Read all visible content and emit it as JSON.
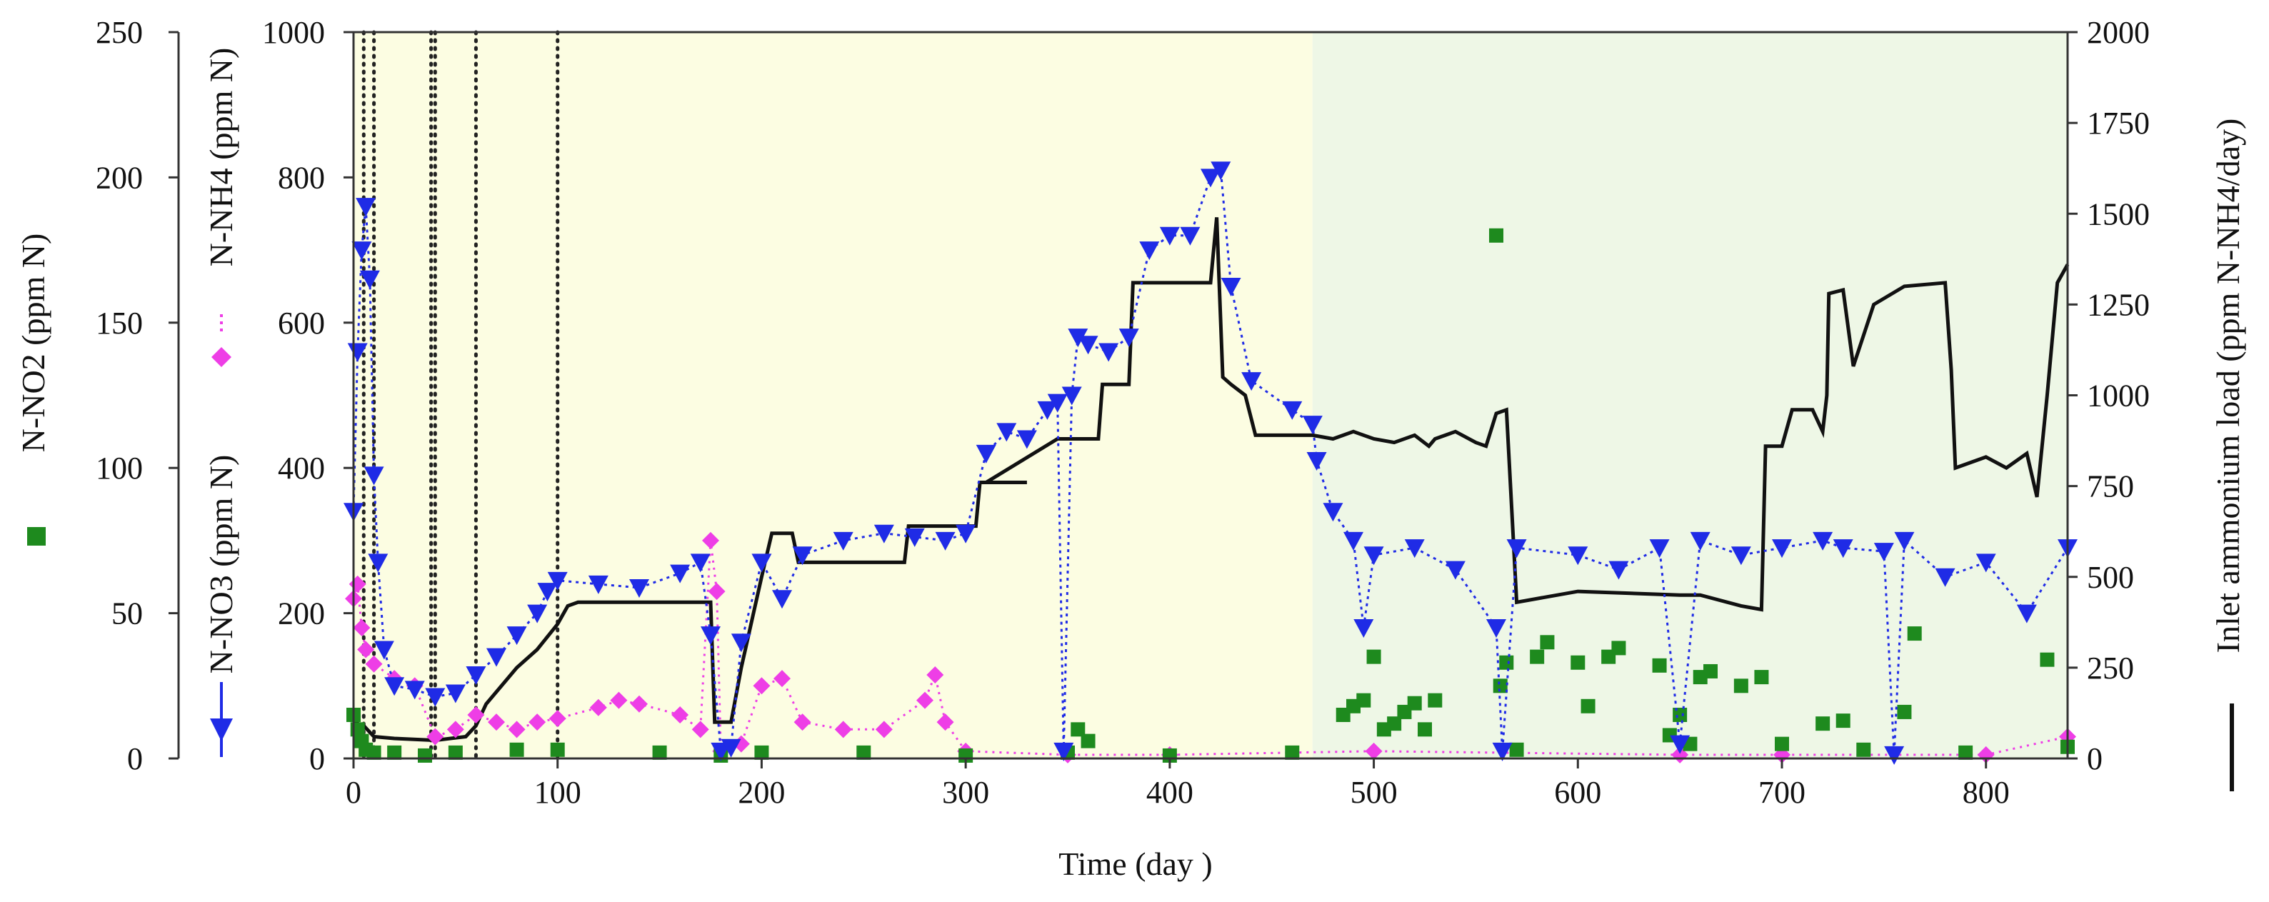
{
  "chart_data": {
    "type": "scatter",
    "xlabel": "Time (day )",
    "x_ticks": [
      0,
      100,
      200,
      300,
      400,
      500,
      600,
      700,
      800
    ],
    "xlim": [
      0,
      840
    ],
    "axes": {
      "no2": {
        "label": "N-NO2 (ppm N)",
        "lim": [
          0,
          250
        ],
        "ticks": [
          0,
          50,
          100,
          150,
          200,
          250
        ]
      },
      "nh4": {
        "label": "N-NH4 (ppm N)",
        "lim": [
          0,
          1000
        ],
        "ticks": [
          0,
          200,
          400,
          600,
          800,
          1000
        ]
      },
      "no3": {
        "label": "N-NO3 (ppm N)",
        "lim": [
          0,
          1000
        ]
      },
      "load": {
        "label": "Inlet ammonium load (ppm N-NH4/day)",
        "lim": [
          0,
          2000
        ],
        "ticks": [
          0,
          250,
          500,
          750,
          1000,
          1250,
          1500,
          1750,
          2000
        ]
      }
    },
    "phases": [
      {
        "x": [
          0,
          470
        ],
        "color": "#fcfde2"
      },
      {
        "x": [
          470,
          840
        ],
        "color": "#eef7e6"
      }
    ],
    "vlines": [
      5,
      10,
      38,
      40,
      60,
      100
    ],
    "colors": {
      "no2": "#1e8a1e",
      "nh4": "#1f2be6",
      "no3": "#ee3ee6",
      "load": "#111111"
    },
    "series": [
      {
        "name": "N-NO2 (ppm N)",
        "key": "no2",
        "marker": "square",
        "points": [
          [
            0,
            15
          ],
          [
            2,
            10
          ],
          [
            4,
            6
          ],
          [
            6,
            3
          ],
          [
            10,
            2
          ],
          [
            20,
            2
          ],
          [
            35,
            1
          ],
          [
            50,
            2
          ],
          [
            80,
            3
          ],
          [
            100,
            3
          ],
          [
            150,
            2
          ],
          [
            180,
            1
          ],
          [
            200,
            2
          ],
          [
            250,
            2
          ],
          [
            300,
            1
          ],
          [
            350,
            2
          ],
          [
            355,
            10
          ],
          [
            360,
            6
          ],
          [
            400,
            1
          ],
          [
            460,
            2
          ],
          [
            485,
            15
          ],
          [
            490,
            18
          ],
          [
            495,
            20
          ],
          [
            500,
            35
          ],
          [
            505,
            10
          ],
          [
            510,
            12
          ],
          [
            515,
            16
          ],
          [
            520,
            19
          ],
          [
            525,
            10
          ],
          [
            530,
            20
          ],
          [
            560,
            180
          ],
          [
            562,
            25
          ],
          [
            565,
            33
          ],
          [
            570,
            3
          ],
          [
            580,
            35
          ],
          [
            585,
            40
          ],
          [
            600,
            33
          ],
          [
            605,
            18
          ],
          [
            615,
            35
          ],
          [
            620,
            38
          ],
          [
            640,
            32
          ],
          [
            645,
            8
          ],
          [
            650,
            15
          ],
          [
            655,
            5
          ],
          [
            660,
            28
          ],
          [
            665,
            30
          ],
          [
            680,
            25
          ],
          [
            690,
            28
          ],
          [
            700,
            5
          ],
          [
            720,
            12
          ],
          [
            730,
            13
          ],
          [
            740,
            3
          ],
          [
            760,
            16
          ],
          [
            765,
            43
          ],
          [
            790,
            2
          ],
          [
            830,
            34
          ],
          [
            840,
            4
          ]
        ]
      },
      {
        "name": "N-NH4 (ppm N)",
        "key": "nh4",
        "marker": "triangle-down",
        "points": [
          [
            0,
            340
          ],
          [
            2,
            560
          ],
          [
            4,
            700
          ],
          [
            6,
            760
          ],
          [
            8,
            660
          ],
          [
            10,
            390
          ],
          [
            12,
            270
          ],
          [
            15,
            150
          ],
          [
            20,
            100
          ],
          [
            30,
            95
          ],
          [
            40,
            85
          ],
          [
            50,
            90
          ],
          [
            60,
            115
          ],
          [
            70,
            140
          ],
          [
            80,
            170
          ],
          [
            90,
            200
          ],
          [
            95,
            230
          ],
          [
            100,
            245
          ],
          [
            120,
            240
          ],
          [
            140,
            235
          ],
          [
            160,
            255
          ],
          [
            170,
            270
          ],
          [
            175,
            170
          ],
          [
            180,
            10
          ],
          [
            185,
            15
          ],
          [
            190,
            160
          ],
          [
            200,
            270
          ],
          [
            210,
            220
          ],
          [
            220,
            280
          ],
          [
            240,
            300
          ],
          [
            260,
            310
          ],
          [
            275,
            305
          ],
          [
            290,
            300
          ],
          [
            300,
            310
          ],
          [
            310,
            420
          ],
          [
            320,
            450
          ],
          [
            330,
            440
          ],
          [
            340,
            480
          ],
          [
            345,
            490
          ],
          [
            348,
            10
          ],
          [
            352,
            500
          ],
          [
            355,
            580
          ],
          [
            360,
            570
          ],
          [
            370,
            560
          ],
          [
            380,
            580
          ],
          [
            390,
            700
          ],
          [
            400,
            720
          ],
          [
            410,
            720
          ],
          [
            420,
            800
          ],
          [
            425,
            810
          ],
          [
            430,
            650
          ],
          [
            440,
            520
          ],
          [
            460,
            480
          ],
          [
            470,
            460
          ],
          [
            472,
            410
          ],
          [
            480,
            340
          ],
          [
            490,
            300
          ],
          [
            495,
            180
          ],
          [
            500,
            280
          ],
          [
            520,
            290
          ],
          [
            540,
            260
          ],
          [
            560,
            180
          ],
          [
            563,
            10
          ],
          [
            570,
            290
          ],
          [
            600,
            280
          ],
          [
            620,
            260
          ],
          [
            640,
            290
          ],
          [
            650,
            20
          ],
          [
            660,
            300
          ],
          [
            680,
            280
          ],
          [
            700,
            290
          ],
          [
            720,
            300
          ],
          [
            730,
            290
          ],
          [
            750,
            285
          ],
          [
            755,
            5
          ],
          [
            760,
            300
          ],
          [
            780,
            250
          ],
          [
            800,
            270
          ],
          [
            820,
            200
          ],
          [
            840,
            290
          ]
        ]
      },
      {
        "name": "N-NO3 (ppm N)",
        "key": "no3",
        "marker": "diamond",
        "points": [
          [
            0,
            220
          ],
          [
            2,
            240
          ],
          [
            4,
            180
          ],
          [
            6,
            150
          ],
          [
            10,
            130
          ],
          [
            20,
            110
          ],
          [
            30,
            100
          ],
          [
            40,
            30
          ],
          [
            50,
            40
          ],
          [
            60,
            60
          ],
          [
            70,
            50
          ],
          [
            80,
            40
          ],
          [
            90,
            50
          ],
          [
            100,
            55
          ],
          [
            120,
            70
          ],
          [
            130,
            80
          ],
          [
            140,
            75
          ],
          [
            160,
            60
          ],
          [
            170,
            40
          ],
          [
            175,
            300
          ],
          [
            178,
            230
          ],
          [
            180,
            10
          ],
          [
            190,
            20
          ],
          [
            200,
            100
          ],
          [
            210,
            110
          ],
          [
            220,
            50
          ],
          [
            240,
            40
          ],
          [
            260,
            40
          ],
          [
            280,
            80
          ],
          [
            285,
            115
          ],
          [
            290,
            50
          ],
          [
            300,
            10
          ],
          [
            350,
            5
          ],
          [
            400,
            5
          ],
          [
            500,
            10
          ],
          [
            650,
            5
          ],
          [
            700,
            5
          ],
          [
            800,
            5
          ],
          [
            840,
            30
          ]
        ]
      },
      {
        "name": "Inlet ammonium load (ppm N-NH4/day)",
        "key": "load",
        "marker": "step",
        "points": [
          [
            0,
            100
          ],
          [
            5,
            90
          ],
          [
            10,
            60
          ],
          [
            20,
            55
          ],
          [
            40,
            50
          ],
          [
            55,
            60
          ],
          [
            60,
            90
          ],
          [
            65,
            150
          ],
          [
            80,
            250
          ],
          [
            90,
            300
          ],
          [
            100,
            370
          ],
          [
            105,
            420
          ],
          [
            110,
            430
          ],
          [
            175,
            430
          ],
          [
            177,
            100
          ],
          [
            185,
            100
          ],
          [
            190,
            250
          ],
          [
            200,
            500
          ],
          [
            205,
            620
          ],
          [
            215,
            620
          ],
          [
            218,
            540
          ],
          [
            270,
            540
          ],
          [
            272,
            640
          ],
          [
            305,
            640
          ],
          [
            307,
            760
          ],
          [
            330,
            760
          ],
          [
            310,
            760
          ],
          [
            345,
            880
          ],
          [
            365,
            880
          ],
          [
            367,
            1030
          ],
          [
            380,
            1030
          ],
          [
            382,
            1310
          ],
          [
            420,
            1310
          ],
          [
            423,
            1490
          ],
          [
            426,
            1050
          ],
          [
            430,
            1030
          ],
          [
            437,
            1000
          ],
          [
            442,
            890
          ],
          [
            470,
            890
          ],
          [
            480,
            880
          ],
          [
            490,
            900
          ],
          [
            500,
            880
          ],
          [
            510,
            870
          ],
          [
            520,
            890
          ],
          [
            527,
            860
          ],
          [
            530,
            880
          ],
          [
            540,
            900
          ],
          [
            550,
            870
          ],
          [
            555,
            860
          ],
          [
            560,
            950
          ],
          [
            565,
            960
          ],
          [
            570,
            430
          ],
          [
            600,
            460
          ],
          [
            650,
            450
          ],
          [
            660,
            450
          ],
          [
            680,
            420
          ],
          [
            690,
            410
          ],
          [
            692,
            860
          ],
          [
            700,
            860
          ],
          [
            705,
            960
          ],
          [
            715,
            960
          ],
          [
            720,
            900
          ],
          [
            722,
            1000
          ],
          [
            723,
            1280
          ],
          [
            730,
            1290
          ],
          [
            735,
            1080
          ],
          [
            745,
            1250
          ],
          [
            760,
            1300
          ],
          [
            780,
            1310
          ],
          [
            783,
            1070
          ],
          [
            785,
            800
          ],
          [
            800,
            830
          ],
          [
            810,
            800
          ],
          [
            820,
            840
          ],
          [
            825,
            720
          ],
          [
            830,
            1000
          ],
          [
            835,
            1310
          ],
          [
            840,
            1360
          ]
        ]
      }
    ]
  }
}
